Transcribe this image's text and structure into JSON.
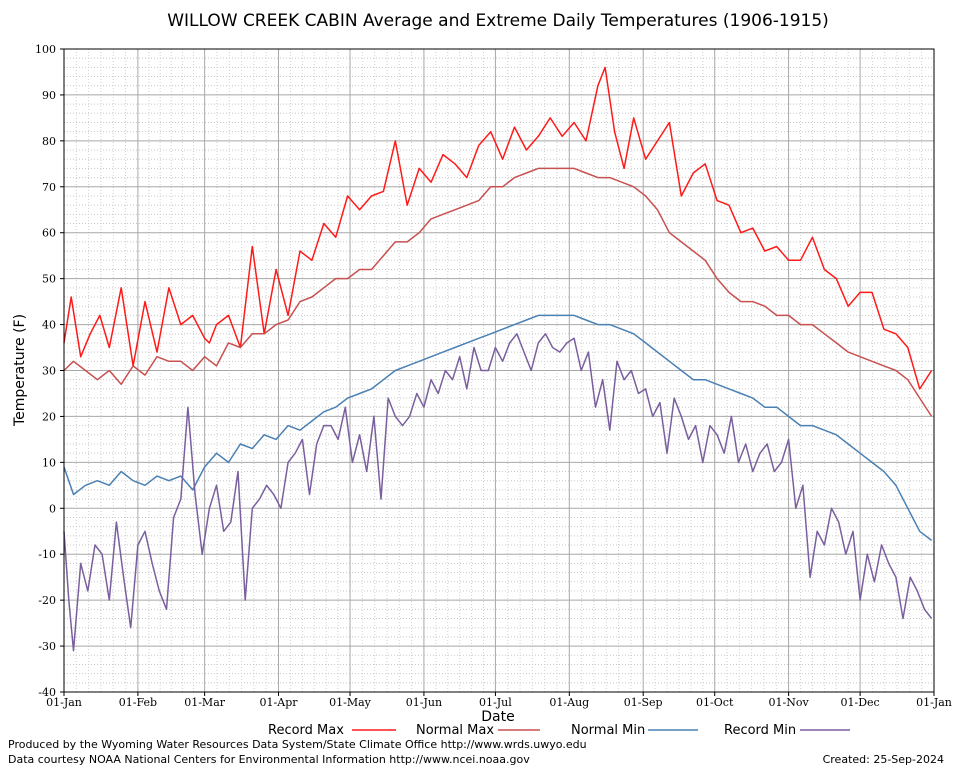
{
  "chart_data": {
    "type": "line",
    "title": "WILLOW CREEK CABIN Average and Extreme Daily Temperatures (1906-1915)",
    "xlabel": "Date",
    "ylabel": "Temperature (F)",
    "ylim": [
      -40,
      100
    ],
    "yticks": [
      -40,
      -30,
      -20,
      -10,
      0,
      10,
      20,
      30,
      40,
      50,
      60,
      70,
      80,
      90,
      100
    ],
    "xticks": [
      "01-Jan",
      "01-Feb",
      "01-Mar",
      "01-Apr",
      "01-May",
      "01-Jun",
      "01-Jul",
      "01-Aug",
      "01-Sep",
      "01-Oct",
      "01-Nov",
      "01-Dec",
      "01-Jan"
    ],
    "grid": true,
    "legend_position": "bottom",
    "series": [
      {
        "name": "Record Max",
        "color": "#ff1a1a",
        "x": [
          1,
          4,
          8,
          12,
          16,
          20,
          25,
          30,
          35,
          40,
          45,
          50,
          55,
          60,
          62,
          65,
          70,
          75,
          80,
          85,
          90,
          95,
          100,
          105,
          110,
          115,
          120,
          125,
          130,
          135,
          140,
          145,
          150,
          155,
          160,
          165,
          170,
          175,
          180,
          185,
          190,
          195,
          200,
          205,
          210,
          215,
          220,
          225,
          228,
          232,
          236,
          240,
          245,
          250,
          255,
          260,
          265,
          270,
          275,
          280,
          285,
          290,
          295,
          300,
          305,
          310,
          315,
          320,
          325,
          330,
          335,
          340,
          345,
          350,
          355,
          360,
          365
        ],
        "y": [
          36,
          46,
          33,
          38,
          42,
          35,
          48,
          31,
          45,
          34,
          48,
          40,
          42,
          37,
          36,
          40,
          42,
          35,
          57,
          38,
          52,
          42,
          56,
          54,
          62,
          59,
          68,
          65,
          68,
          69,
          80,
          66,
          74,
          71,
          77,
          75,
          72,
          79,
          82,
          76,
          83,
          78,
          81,
          85,
          81,
          84,
          80,
          92,
          96,
          82,
          74,
          85,
          76,
          80,
          84,
          68,
          73,
          75,
          67,
          66,
          60,
          61,
          56,
          57,
          54,
          54,
          59,
          52,
          50,
          44,
          47,
          47,
          39,
          38,
          35,
          26,
          30
        ]
      },
      {
        "name": "Normal Max",
        "color": "#c85050",
        "x": [
          1,
          5,
          10,
          15,
          20,
          25,
          30,
          35,
          40,
          45,
          50,
          55,
          60,
          65,
          70,
          75,
          80,
          85,
          90,
          95,
          100,
          105,
          110,
          115,
          120,
          125,
          130,
          135,
          140,
          145,
          150,
          155,
          160,
          165,
          170,
          175,
          180,
          185,
          190,
          195,
          200,
          205,
          210,
          215,
          220,
          225,
          230,
          235,
          240,
          245,
          250,
          255,
          260,
          265,
          270,
          275,
          280,
          285,
          290,
          295,
          300,
          305,
          310,
          315,
          320,
          325,
          330,
          335,
          340,
          345,
          350,
          355,
          360,
          365
        ],
        "y": [
          30,
          32,
          30,
          28,
          30,
          27,
          31,
          29,
          33,
          32,
          32,
          30,
          33,
          31,
          36,
          35,
          38,
          38,
          40,
          41,
          45,
          46,
          48,
          50,
          50,
          52,
          52,
          55,
          58,
          58,
          60,
          63,
          64,
          65,
          66,
          67,
          70,
          70,
          72,
          73,
          74,
          74,
          74,
          74,
          73,
          72,
          72,
          71,
          70,
          68,
          65,
          60,
          58,
          56,
          54,
          50,
          47,
          45,
          45,
          44,
          42,
          42,
          40,
          40,
          38,
          36,
          34,
          33,
          32,
          31,
          30,
          28,
          24,
          20
        ]
      },
      {
        "name": "Normal Min",
        "color": "#4a80b4",
        "x": [
          1,
          5,
          10,
          15,
          20,
          25,
          30,
          35,
          40,
          45,
          50,
          55,
          60,
          65,
          70,
          75,
          80,
          85,
          90,
          95,
          100,
          105,
          110,
          115,
          120,
          125,
          130,
          135,
          140,
          145,
          150,
          155,
          160,
          165,
          170,
          175,
          180,
          185,
          190,
          195,
          200,
          205,
          210,
          215,
          220,
          225,
          230,
          235,
          240,
          245,
          250,
          255,
          260,
          265,
          270,
          275,
          280,
          285,
          290,
          295,
          300,
          305,
          310,
          315,
          320,
          325,
          330,
          335,
          340,
          345,
          350,
          355,
          360,
          365
        ],
        "y": [
          9,
          3,
          5,
          6,
          5,
          8,
          6,
          5,
          7,
          6,
          7,
          4,
          9,
          12,
          10,
          14,
          13,
          16,
          15,
          18,
          17,
          19,
          21,
          22,
          24,
          25,
          26,
          28,
          30,
          31,
          32,
          33,
          34,
          35,
          36,
          37,
          38,
          39,
          40,
          41,
          42,
          42,
          42,
          42,
          41,
          40,
          40,
          39,
          38,
          36,
          34,
          32,
          30,
          28,
          28,
          27,
          26,
          25,
          24,
          22,
          22,
          20,
          18,
          18,
          17,
          16,
          14,
          12,
          10,
          8,
          5,
          0,
          -5,
          -7
        ]
      },
      {
        "name": "Record Min",
        "color": "#7a5f9f",
        "x": [
          1,
          3,
          5,
          8,
          11,
          14,
          17,
          20,
          23,
          26,
          29,
          32,
          35,
          38,
          41,
          44,
          47,
          50,
          53,
          56,
          59,
          62,
          65,
          68,
          71,
          74,
          77,
          80,
          83,
          86,
          89,
          92,
          95,
          98,
          101,
          104,
          107,
          110,
          113,
          116,
          119,
          122,
          125,
          128,
          131,
          134,
          137,
          140,
          143,
          146,
          149,
          152,
          155,
          158,
          161,
          164,
          167,
          170,
          173,
          176,
          179,
          182,
          185,
          188,
          191,
          194,
          197,
          200,
          203,
          206,
          209,
          212,
          215,
          218,
          221,
          224,
          227,
          230,
          233,
          236,
          239,
          242,
          245,
          248,
          251,
          254,
          257,
          260,
          263,
          266,
          269,
          272,
          275,
          278,
          281,
          284,
          287,
          290,
          293,
          296,
          299,
          302,
          305,
          308,
          311,
          314,
          317,
          320,
          323,
          326,
          329,
          332,
          335,
          338,
          341,
          344,
          347,
          350,
          353,
          356,
          359,
          362,
          365
        ],
        "y": [
          -5,
          -20,
          -31,
          -12,
          -18,
          -8,
          -10,
          -20,
          -3,
          -15,
          -26,
          -8,
          -5,
          -12,
          -18,
          -22,
          -2,
          2,
          22,
          3,
          -10,
          0,
          5,
          -5,
          -3,
          8,
          -20,
          0,
          2,
          5,
          3,
          0,
          10,
          12,
          15,
          3,
          14,
          18,
          18,
          15,
          22,
          10,
          16,
          8,
          20,
          2,
          24,
          20,
          18,
          20,
          25,
          22,
          28,
          25,
          30,
          28,
          33,
          26,
          35,
          30,
          30,
          35,
          32,
          36,
          38,
          34,
          30,
          36,
          38,
          35,
          34,
          36,
          37,
          30,
          34,
          22,
          28,
          17,
          32,
          28,
          30,
          25,
          26,
          20,
          23,
          12,
          24,
          20,
          15,
          18,
          10,
          18,
          16,
          12,
          20,
          10,
          14,
          8,
          12,
          14,
          8,
          10,
          15,
          0,
          5,
          -15,
          -5,
          -8,
          0,
          -3,
          -10,
          -5,
          -20,
          -10,
          -16,
          -8,
          -12,
          -15,
          -24,
          -15,
          -18,
          -22,
          -24
        ]
      }
    ]
  },
  "footer": {
    "produced_by": "Produced by the Wyoming Water Resources Data System/State Climate Office http://www.wrds.uwyo.edu",
    "data_courtesy": "Data courtesy NOAA National Centers for Environmental Information http://www.ncei.noaa.gov",
    "created": "Created:  25-Sep-2024"
  }
}
